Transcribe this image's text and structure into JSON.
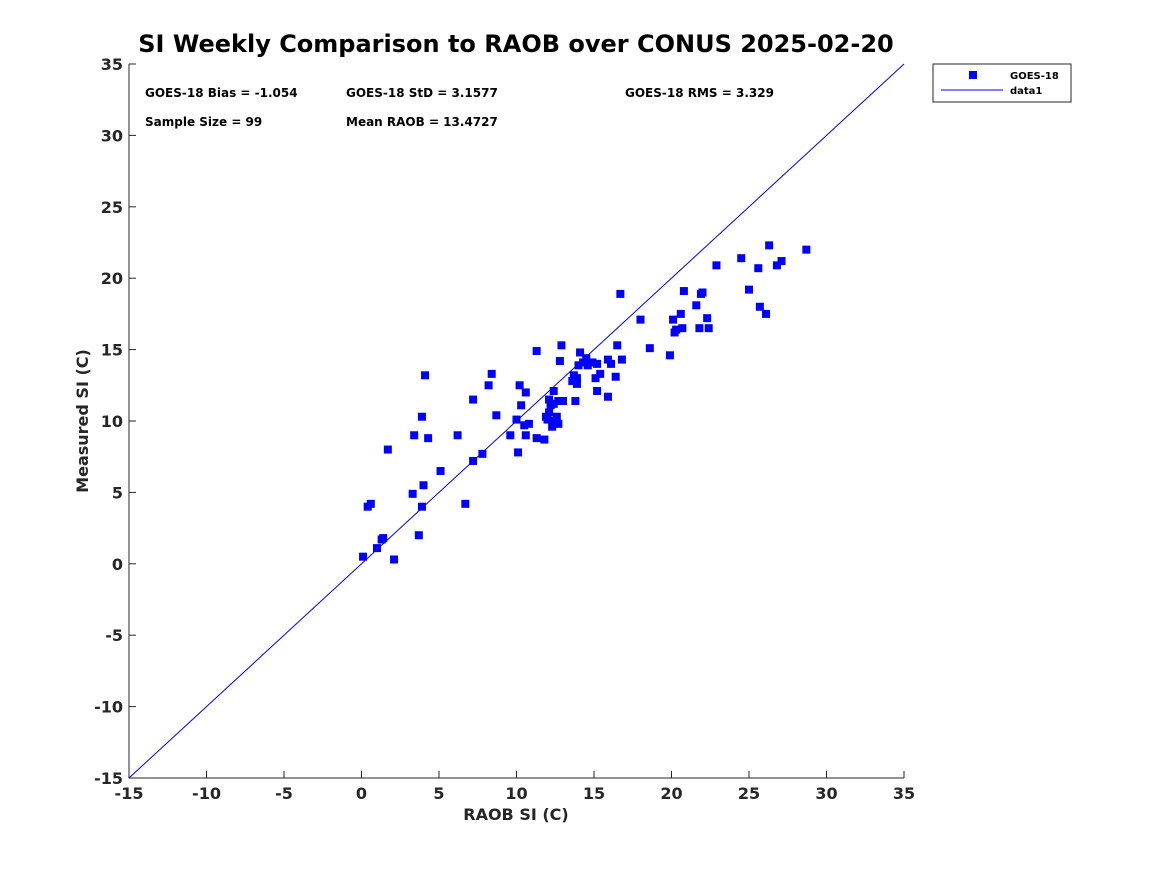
{
  "chart_data": {
    "type": "scatter",
    "title": "SI Weekly Comparison to RAOB over CONUS 2025-02-20",
    "xlabel": "RAOB SI (C)",
    "ylabel": "Measured SI (C)",
    "xlim": [
      -15,
      35
    ],
    "ylim": [
      -15,
      35
    ],
    "xticks": [
      -15,
      -10,
      -5,
      0,
      5,
      10,
      15,
      20,
      25,
      30,
      35
    ],
    "yticks": [
      -15,
      -10,
      -5,
      0,
      5,
      10,
      15,
      20,
      25,
      30,
      35
    ],
    "grid": false,
    "legend_position": "outside top-right",
    "stats": {
      "bias": "GOES-18 Bias = -1.054",
      "std": "GOES-18 StD = 3.1577",
      "rms": "GOES-18 RMS = 3.329",
      "sample_size": "Sample Size = 99",
      "mean_raob": "Mean RAOB = 13.4727"
    },
    "series": [
      {
        "name": "GOES-18",
        "kind": "marker",
        "marker": "square",
        "color": "#0000ff",
        "points": [
          [
            0.1,
            0.5
          ],
          [
            0.4,
            4.0
          ],
          [
            0.6,
            4.2
          ],
          [
            1.0,
            1.1
          ],
          [
            1.3,
            1.7
          ],
          [
            1.4,
            1.8
          ],
          [
            1.7,
            8.0
          ],
          [
            2.1,
            0.3
          ],
          [
            3.3,
            4.9
          ],
          [
            3.4,
            9.0
          ],
          [
            3.7,
            2.0
          ],
          [
            3.9,
            4.0
          ],
          [
            3.9,
            10.3
          ],
          [
            4.0,
            5.5
          ],
          [
            4.1,
            13.2
          ],
          [
            4.3,
            8.8
          ],
          [
            5.1,
            6.5
          ],
          [
            6.2,
            9.0
          ],
          [
            6.7,
            4.2
          ],
          [
            7.2,
            7.2
          ],
          [
            7.2,
            11.5
          ],
          [
            7.8,
            7.7
          ],
          [
            8.2,
            12.5
          ],
          [
            8.4,
            13.3
          ],
          [
            8.7,
            10.4
          ],
          [
            9.6,
            9.0
          ],
          [
            10.0,
            10.1
          ],
          [
            10.1,
            7.8
          ],
          [
            10.2,
            12.5
          ],
          [
            10.3,
            11.1
          ],
          [
            10.5,
            9.7
          ],
          [
            10.6,
            12.0
          ],
          [
            10.6,
            9.0
          ],
          [
            10.8,
            9.8
          ],
          [
            11.3,
            14.9
          ],
          [
            11.3,
            8.8
          ],
          [
            11.8,
            8.7
          ],
          [
            11.9,
            10.3
          ],
          [
            12.0,
            10.1
          ],
          [
            12.1,
            10.6
          ],
          [
            12.1,
            11.5
          ],
          [
            12.2,
            11.1
          ],
          [
            12.3,
            9.6
          ],
          [
            12.4,
            11.2
          ],
          [
            12.4,
            12.1
          ],
          [
            12.5,
            10.0
          ],
          [
            12.6,
            10.3
          ],
          [
            12.7,
            9.8
          ],
          [
            12.7,
            11.4
          ],
          [
            12.8,
            14.2
          ],
          [
            12.9,
            15.3
          ],
          [
            13.0,
            11.4
          ],
          [
            13.6,
            12.8
          ],
          [
            13.7,
            13.2
          ],
          [
            13.8,
            11.4
          ],
          [
            13.9,
            12.6
          ],
          [
            13.9,
            13.0
          ],
          [
            14.0,
            13.9
          ],
          [
            14.1,
            14.8
          ],
          [
            14.3,
            14.1
          ],
          [
            14.5,
            14.4
          ],
          [
            14.6,
            13.9
          ],
          [
            14.9,
            14.1
          ],
          [
            15.1,
            13.0
          ],
          [
            15.2,
            14.0
          ],
          [
            15.2,
            12.1
          ],
          [
            15.4,
            13.3
          ],
          [
            15.9,
            11.7
          ],
          [
            15.9,
            14.3
          ],
          [
            16.1,
            14.0
          ],
          [
            16.4,
            13.1
          ],
          [
            16.5,
            15.3
          ],
          [
            16.7,
            18.9
          ],
          [
            16.8,
            14.3
          ],
          [
            18.0,
            17.1
          ],
          [
            18.6,
            15.1
          ],
          [
            19.9,
            14.6
          ],
          [
            20.1,
            17.1
          ],
          [
            20.2,
            16.2
          ],
          [
            20.3,
            16.4
          ],
          [
            20.6,
            17.5
          ],
          [
            20.7,
            16.5
          ],
          [
            20.8,
            19.1
          ],
          [
            21.6,
            18.1
          ],
          [
            21.8,
            16.5
          ],
          [
            21.9,
            18.9
          ],
          [
            22.0,
            19.0
          ],
          [
            22.3,
            17.2
          ],
          [
            22.4,
            16.5
          ],
          [
            22.9,
            20.9
          ],
          [
            24.5,
            21.4
          ],
          [
            25.0,
            19.2
          ],
          [
            25.6,
            20.7
          ],
          [
            25.7,
            18.0
          ],
          [
            26.1,
            17.5
          ],
          [
            26.3,
            22.3
          ],
          [
            26.8,
            20.9
          ],
          [
            27.1,
            21.2
          ],
          [
            28.7,
            22.0
          ]
        ]
      },
      {
        "name": "data1",
        "kind": "line",
        "color": "#0000ff",
        "x": [
          -15,
          35
        ],
        "y": [
          -15,
          35
        ]
      }
    ]
  }
}
